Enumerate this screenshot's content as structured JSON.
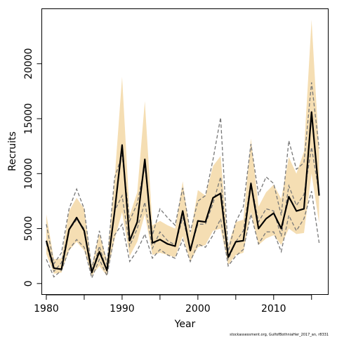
{
  "chart_data": {
    "type": "line",
    "xlabel": "Year",
    "ylabel": "Recruits",
    "xlim": [
      1979.4,
      2017.2
    ],
    "ylim": [
      -1000,
      25000
    ],
    "x_ticks": [
      1980,
      1990,
      2000,
      2010
    ],
    "x_minor_ticks": [
      1985,
      1995,
      2005,
      2015
    ],
    "y_ticks": [
      0,
      5000,
      10000,
      15000,
      20000
    ],
    "grid": false,
    "legend": "none",
    "credit": "stockassessment.org, GulfofBothniaHer_2017_an, r8331",
    "colors": {
      "band": "#f5deb3",
      "estimate": "#000000",
      "dashed": "#777777"
    },
    "x": [
      1980,
      1981,
      1982,
      1983,
      1984,
      1985,
      1986,
      1987,
      1988,
      1989,
      1990,
      1991,
      1992,
      1993,
      1994,
      1995,
      1996,
      1997,
      1998,
      1999,
      2000,
      2001,
      2002,
      2003,
      2004,
      2005,
      2006,
      2007,
      2008,
      2009,
      2010,
      2011,
      2012,
      2013,
      2014,
      2015,
      2016
    ],
    "series": [
      {
        "role": "band-upper",
        "values": [
          6300,
          2200,
          2300,
          6600,
          7800,
          6800,
          1700,
          4500,
          2200,
          9400,
          18800,
          6200,
          8300,
          16600,
          5300,
          5700,
          5300,
          5000,
          9300,
          4400,
          8500,
          8000,
          10700,
          11600,
          3500,
          5600,
          5800,
          13200,
          7000,
          8300,
          9000,
          7700,
          11500,
          10000,
          12000,
          24000,
          12000
        ]
      },
      {
        "role": "band-lower",
        "values": [
          2700,
          900,
          1000,
          3000,
          3800,
          3000,
          700,
          1600,
          700,
          4000,
          6500,
          2500,
          3800,
          6300,
          2600,
          2800,
          2600,
          2400,
          4300,
          2000,
          3300,
          3500,
          4800,
          5000,
          1700,
          2600,
          2800,
          6500,
          3500,
          4100,
          4400,
          3500,
          5000,
          4500,
          4600,
          10000,
          5500
        ]
      },
      {
        "role": "estimate",
        "values": [
          3900,
          1400,
          1300,
          4900,
          6000,
          4800,
          1000,
          2900,
          1200,
          6500,
          12600,
          3900,
          5600,
          11300,
          3700,
          4000,
          3600,
          3400,
          6600,
          3000,
          5700,
          5600,
          7800,
          8200,
          2400,
          3800,
          3900,
          9100,
          5000,
          5900,
          6400,
          5000,
          7900,
          6600,
          6800,
          15600,
          8000
        ]
      },
      {
        "role": "dashed-upper",
        "values": [
          5400,
          1800,
          2800,
          6800,
          8600,
          6800,
          1200,
          4800,
          1700,
          9600,
          11700,
          5700,
          7300,
          10700,
          4400,
          6800,
          6000,
          5300,
          8700,
          4700,
          7500,
          8000,
          11300,
          15100,
          2900,
          5600,
          7000,
          12700,
          8100,
          9700,
          9100,
          6200,
          13000,
          10400,
          11000,
          18300,
          12300
        ]
      },
      {
        "role": "dashed-mid",
        "values": [
          3700,
          1100,
          1900,
          4900,
          5800,
          5000,
          900,
          3400,
          1100,
          6600,
          8000,
          3400,
          5000,
          7400,
          3200,
          4700,
          3900,
          3500,
          6000,
          3100,
          5400,
          5400,
          7300,
          9700,
          2200,
          3800,
          4800,
          9200,
          5600,
          6800,
          6600,
          4300,
          8900,
          7100,
          8100,
          12400,
          8200
        ]
      },
      {
        "role": "dashed-lower",
        "values": [
          2200,
          600,
          1200,
          3100,
          4000,
          3300,
          500,
          2200,
          700,
          4400,
          5400,
          2000,
          3000,
          4500,
          2300,
          3100,
          2600,
          2300,
          4000,
          2000,
          3600,
          3300,
          4400,
          5900,
          1600,
          2500,
          3100,
          6300,
          3600,
          4700,
          4700,
          2900,
          6200,
          4800,
          5900,
          8400,
          3700
        ]
      }
    ]
  }
}
